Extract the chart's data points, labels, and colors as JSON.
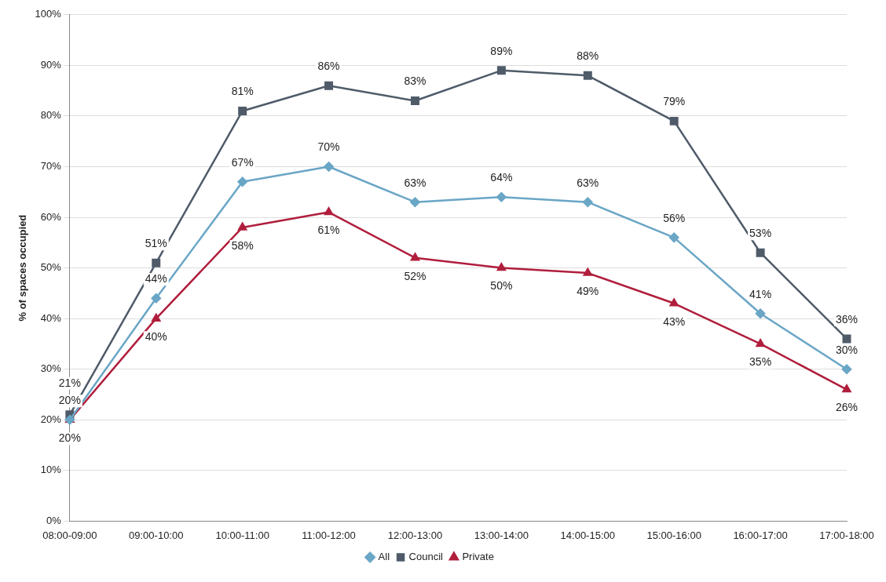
{
  "chart_data": {
    "type": "line",
    "ylabel": "% of spaces occupied",
    "categories": [
      "08:00-09:00",
      "09:00-10:00",
      "10:00-11:00",
      "11:00-12:00",
      "12:00-13:00",
      "13:00-14:00",
      "14:00-15:00",
      "15:00-16:00",
      "16:00-17:00",
      "17:00-18:00"
    ],
    "series": [
      {
        "name": "All",
        "color": "#6aa6c6",
        "marker": "diamond",
        "values": [
          20,
          44,
          67,
          70,
          63,
          64,
          63,
          56,
          41,
          30
        ],
        "value_labels": [
          "20%",
          "44%",
          "67%",
          "70%",
          "63%",
          "64%",
          "63%",
          "56%",
          "41%",
          "30%"
        ]
      },
      {
        "name": "Council",
        "color": "#4f5b69",
        "marker": "square",
        "values": [
          21,
          51,
          81,
          86,
          83,
          89,
          88,
          79,
          53,
          36
        ],
        "value_labels": [
          "21%",
          "51%",
          "81%",
          "86%",
          "83%",
          "89%",
          "88%",
          "79%",
          "53%",
          "36%"
        ]
      },
      {
        "name": "Private",
        "color": "#b01e3c",
        "marker": "triangle",
        "values": [
          20,
          40,
          58,
          61,
          52,
          50,
          49,
          43,
          35,
          26
        ],
        "value_labels": [
          "20%",
          "40%",
          "58%",
          "61%",
          "52%",
          "50%",
          "49%",
          "43%",
          "35%",
          "26%"
        ]
      }
    ],
    "ylim": [
      0,
      100
    ],
    "yticks": [
      {
        "value": 0,
        "label": "0%"
      },
      {
        "value": 10,
        "label": "10%"
      },
      {
        "value": 20,
        "label": "20%"
      },
      {
        "value": 30,
        "label": "30%"
      },
      {
        "value": 40,
        "label": "40%"
      },
      {
        "value": 50,
        "label": "50%"
      },
      {
        "value": 60,
        "label": "60%"
      },
      {
        "value": 70,
        "label": "70%"
      },
      {
        "value": 80,
        "label": "80%"
      },
      {
        "value": 90,
        "label": "90%"
      },
      {
        "value": 100,
        "label": "100%"
      }
    ],
    "grid": "y",
    "legend": "bottom",
    "line_style": "solid"
  }
}
